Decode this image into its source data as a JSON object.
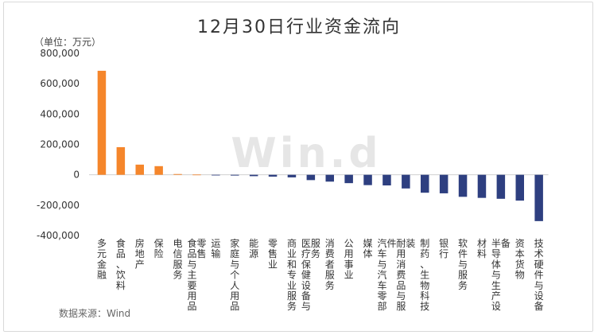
{
  "chart_data": {
    "type": "bar",
    "title": "12月30日行业资金流向",
    "unit_label": "（单位：万元）",
    "source_label": "数据来源：Wind",
    "watermark": "Win.d",
    "ylim": [
      -400000,
      800000
    ],
    "yticks": [
      800000,
      600000,
      400000,
      200000,
      0,
      -200000,
      -400000
    ],
    "ytick_labels": [
      "800,000",
      "600,000",
      "400,000",
      "200,000",
      "0",
      "-200,000",
      "-400,000"
    ],
    "grid": false,
    "legend": "none",
    "colors": {
      "positive": "#F5862B",
      "negative": "#2E3F80"
    },
    "categories": [
      "多元金融",
      "食品、饮料",
      "房地产",
      "保险",
      "电信服务",
      "食品与主要用品零售",
      "运输",
      "家庭与个人用品",
      "能源",
      "零售业",
      "商业和专业服务",
      "医疗保健设备与服务",
      "消费者服务",
      "公用事业",
      "媒体",
      "汽车与汽车零部件",
      "耐用消费品与服装",
      "制药、生物科技",
      "银行",
      "软件与服务",
      "材料",
      "半导体与生产设备",
      "资本货物",
      "技术硬件与设备"
    ],
    "values": [
      685000,
      182000,
      67000,
      57000,
      5000,
      1500,
      -1500,
      -5000,
      -9000,
      -12000,
      -17000,
      -35000,
      -45000,
      -55000,
      -68000,
      -70000,
      -90000,
      -118000,
      -122000,
      -145000,
      -152000,
      -158000,
      -170000,
      -305000
    ]
  }
}
